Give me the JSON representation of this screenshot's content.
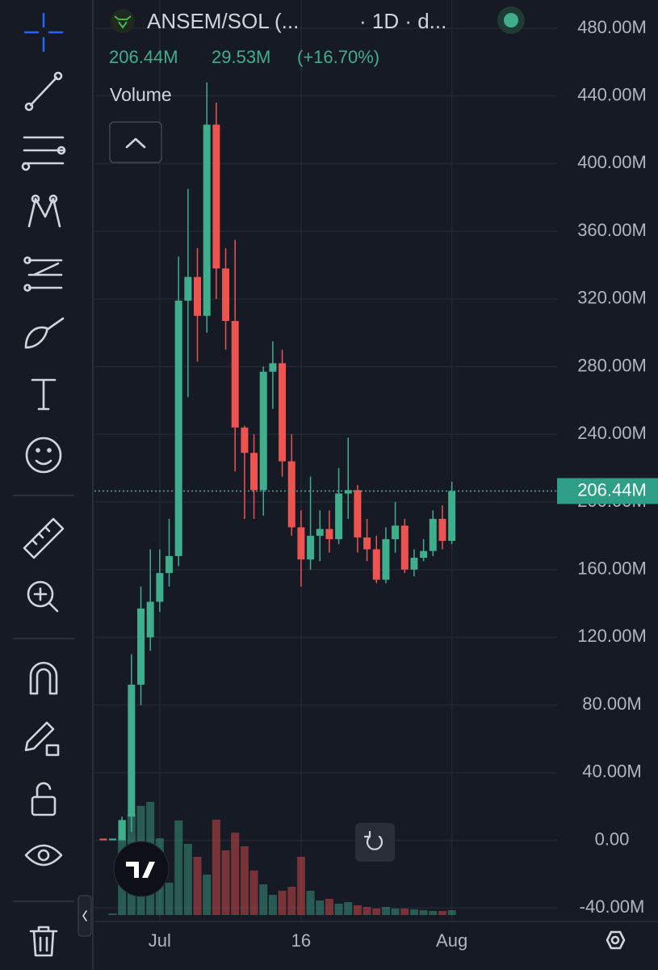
{
  "header": {
    "symbol": "ANSEM/SOL (...",
    "interval": "· 1D · d...",
    "price": "206.44M",
    "change": "29.53M",
    "change_pct": "(+16.70%)",
    "indicator": "Volume"
  },
  "chart_data": {
    "type": "candlestick",
    "categories": [
      null,
      null,
      null,
      null,
      null,
      null,
      "Jul",
      null,
      null,
      null,
      null,
      null,
      null,
      null,
      null,
      null,
      null,
      null,
      null,
      null,
      null,
      "16",
      null,
      null,
      null,
      null,
      null,
      null,
      null,
      null,
      null,
      null,
      null,
      null,
      null,
      null,
      null,
      "Aug"
    ],
    "series": {
      "open": [
        1,
        0,
        0,
        14,
        92,
        120,
        141,
        158,
        168,
        319,
        333,
        310,
        423,
        338,
        307,
        244,
        229,
        207,
        277,
        282,
        224,
        185,
        166,
        180,
        184,
        178,
        205,
        207,
        179,
        172,
        154,
        178,
        186,
        160,
        167,
        171,
        190,
        177
      ],
      "high": [
        1,
        1,
        14,
        110,
        150,
        172,
        172,
        190,
        345,
        385,
        350,
        448,
        436,
        350,
        355,
        245,
        240,
        280,
        295,
        290,
        240,
        195,
        215,
        195,
        195,
        220,
        238,
        210,
        190,
        180,
        185,
        200,
        190,
        172,
        178,
        195,
        198,
        212
      ],
      "low": [
        0,
        0,
        0,
        5,
        80,
        112,
        135,
        150,
        162,
        262,
        283,
        300,
        320,
        290,
        218,
        190,
        190,
        192,
        255,
        215,
        180,
        150,
        160,
        165,
        170,
        175,
        190,
        170,
        165,
        152,
        152,
        170,
        158,
        156,
        165,
        168,
        172,
        175
      ],
      "close": [
        0,
        1,
        12,
        92,
        137,
        141,
        158,
        168,
        319,
        333,
        310,
        423,
        338,
        307,
        244,
        229,
        207,
        277,
        282,
        224,
        185,
        166,
        180,
        184,
        178,
        205,
        207,
        179,
        172,
        154,
        178,
        186,
        160,
        167,
        171,
        190,
        177,
        206.44
      ],
      "volume": [
        0,
        2,
        117,
        125,
        135,
        140,
        95,
        40,
        117,
        88,
        72,
        50,
        118,
        80,
        102,
        85,
        55,
        38,
        25,
        30,
        35,
        72,
        30,
        18,
        20,
        14,
        16,
        12,
        10,
        8,
        10,
        8,
        8,
        7,
        6,
        5,
        5,
        6
      ]
    },
    "up_color": "#3fae8c",
    "down_color": "#ef5350",
    "ylim": [
      -48,
      496.7
    ],
    "yticks": [
      {
        "value": -40,
        "label": "-40.00M"
      },
      {
        "value": 0,
        "label": "0.00"
      },
      {
        "value": 40,
        "label": "40.00M"
      },
      {
        "value": 80,
        "label": "80.00M"
      },
      {
        "value": 120,
        "label": "120.00M"
      },
      {
        "value": 160,
        "label": "160.00M"
      },
      {
        "value": 200,
        "label": "200.00M"
      },
      {
        "value": 240,
        "label": "240.00M"
      },
      {
        "value": 280,
        "label": "280.00M"
      },
      {
        "value": 320,
        "label": "320.00M"
      },
      {
        "value": 360,
        "label": "360.00M"
      },
      {
        "value": 400,
        "label": "400.00M"
      },
      {
        "value": 440,
        "label": "440.00M"
      },
      {
        "value": 480,
        "label": "480.00M"
      }
    ],
    "last_price": {
      "value": 206.44,
      "label": "206.44M"
    },
    "grid": true
  }
}
